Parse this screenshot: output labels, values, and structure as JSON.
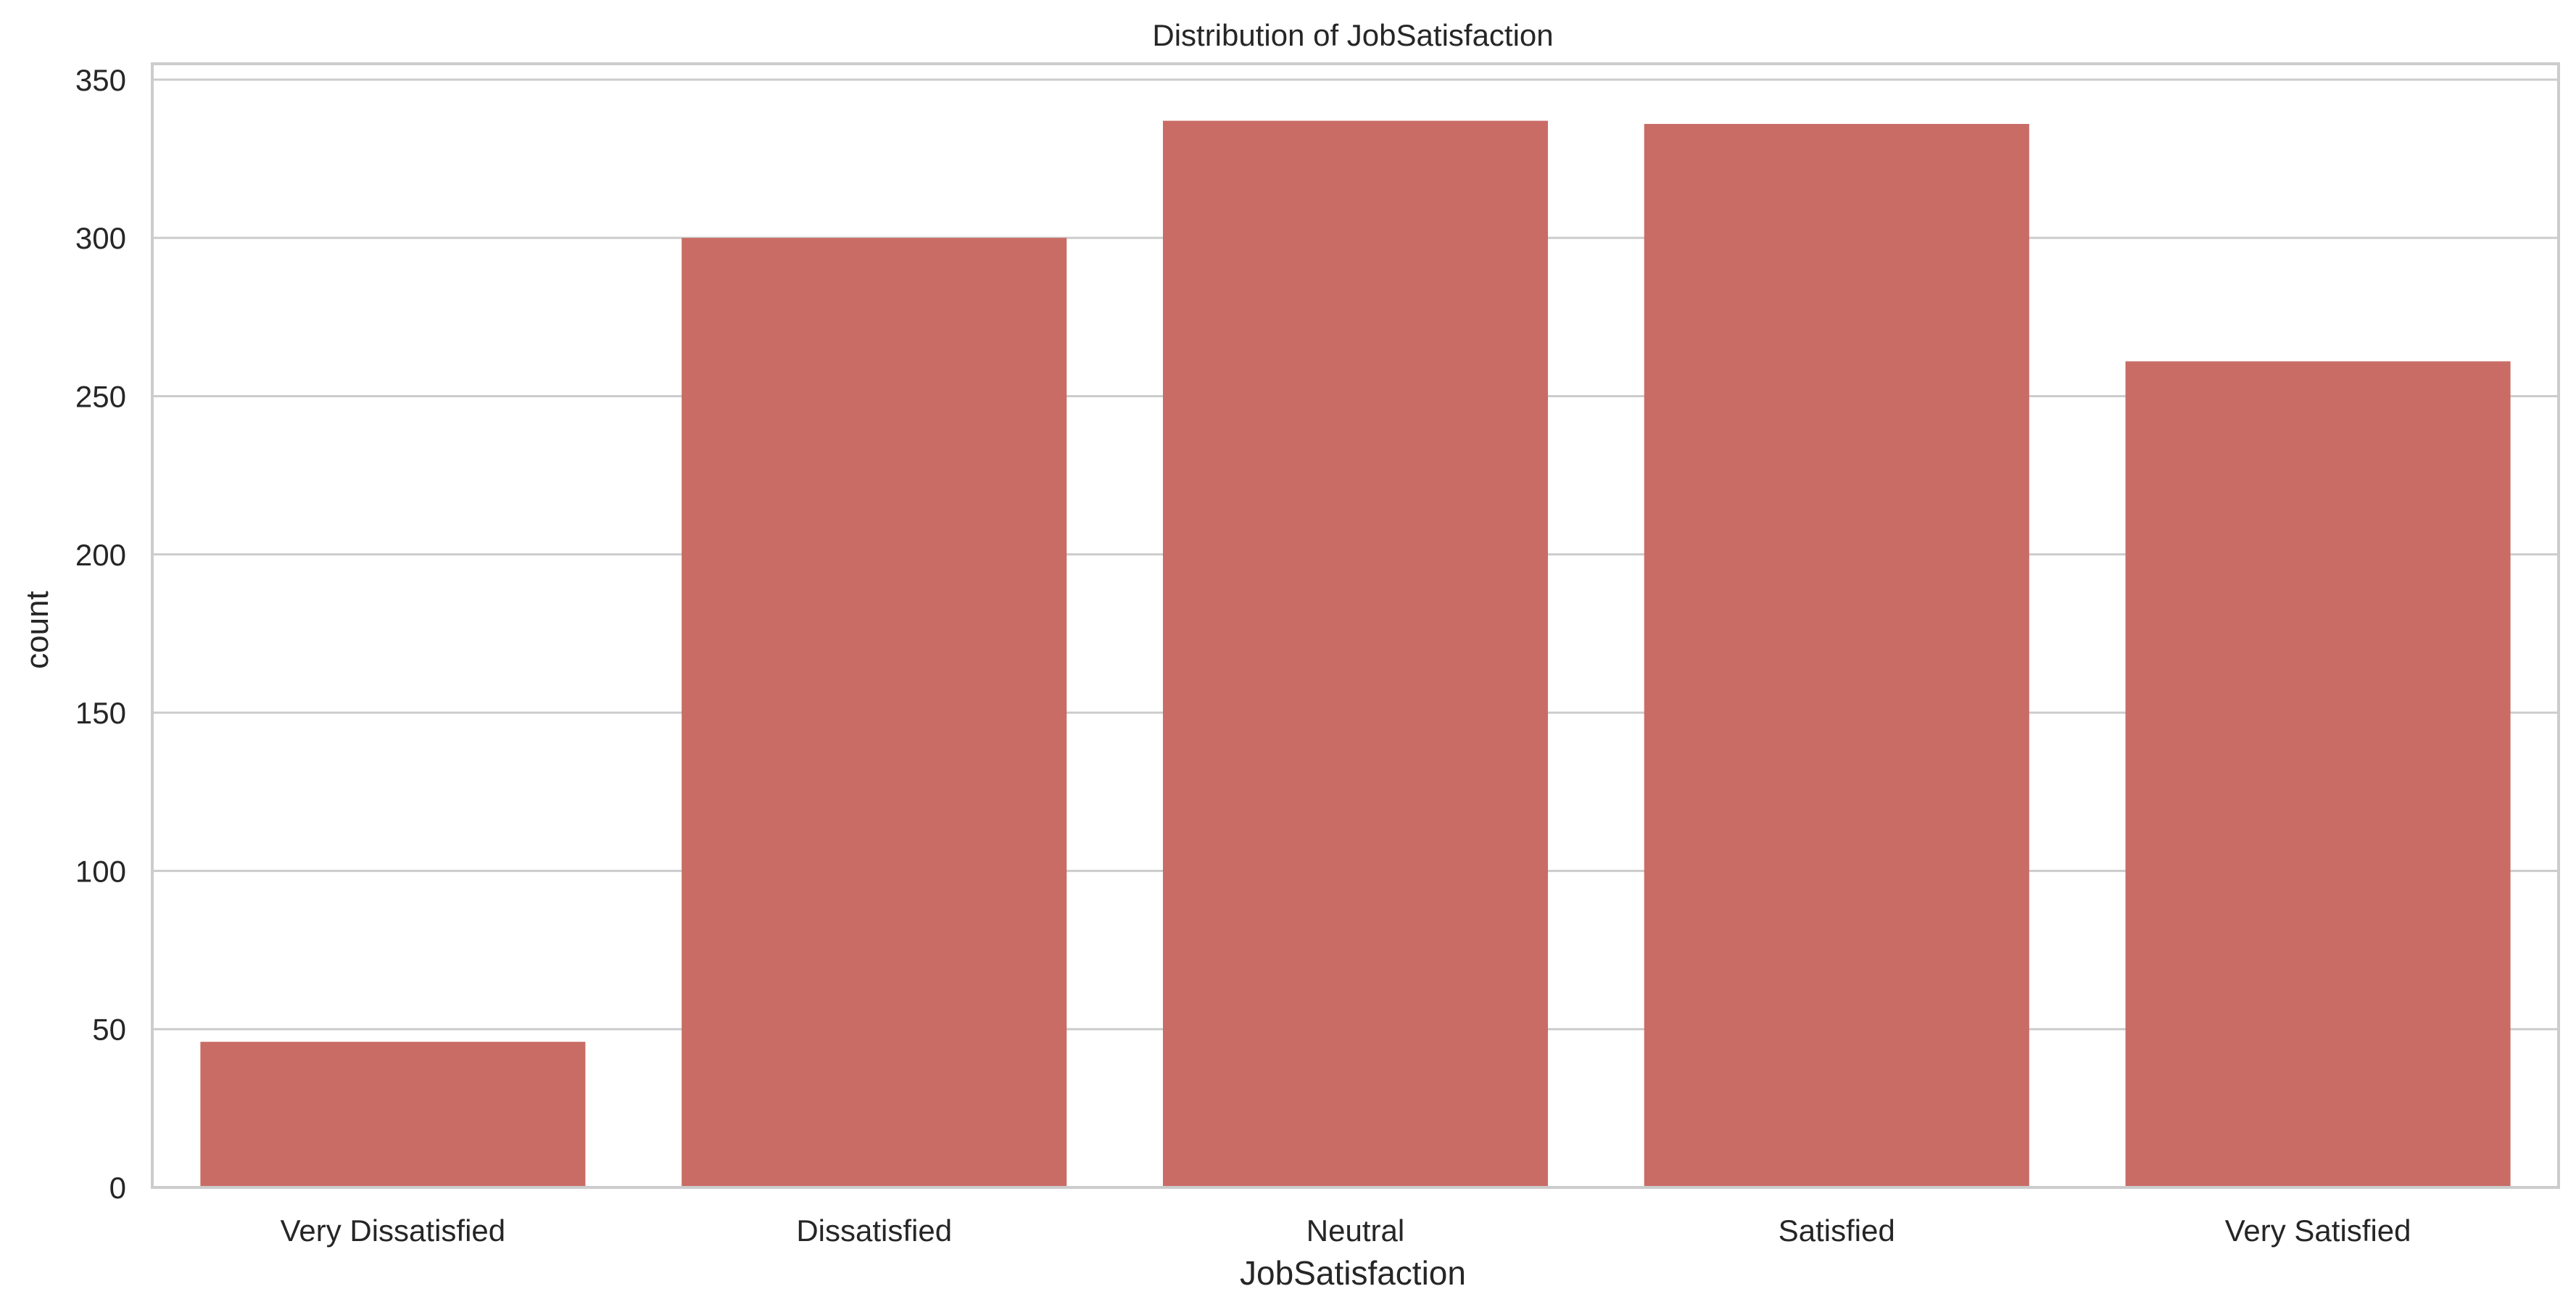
{
  "chart_data": {
    "type": "bar",
    "title": "Distribution of JobSatisfaction",
    "xlabel": "JobSatisfaction",
    "ylabel": "count",
    "categories": [
      "Very Dissatisfied",
      "Dissatisfied",
      "Neutral",
      "Satisfied",
      "Very Satisfied"
    ],
    "values": [
      46,
      300,
      337,
      336,
      261
    ],
    "ylim": [
      0,
      355
    ],
    "yticks": [
      0,
      50,
      100,
      150,
      200,
      250,
      300,
      350
    ],
    "grid": true,
    "legend": "none",
    "colors": {
      "bar": "#c96c66",
      "grid": "#cccccc",
      "spine": "#cccccc",
      "text": "#262626",
      "background": "#ffffff"
    }
  }
}
